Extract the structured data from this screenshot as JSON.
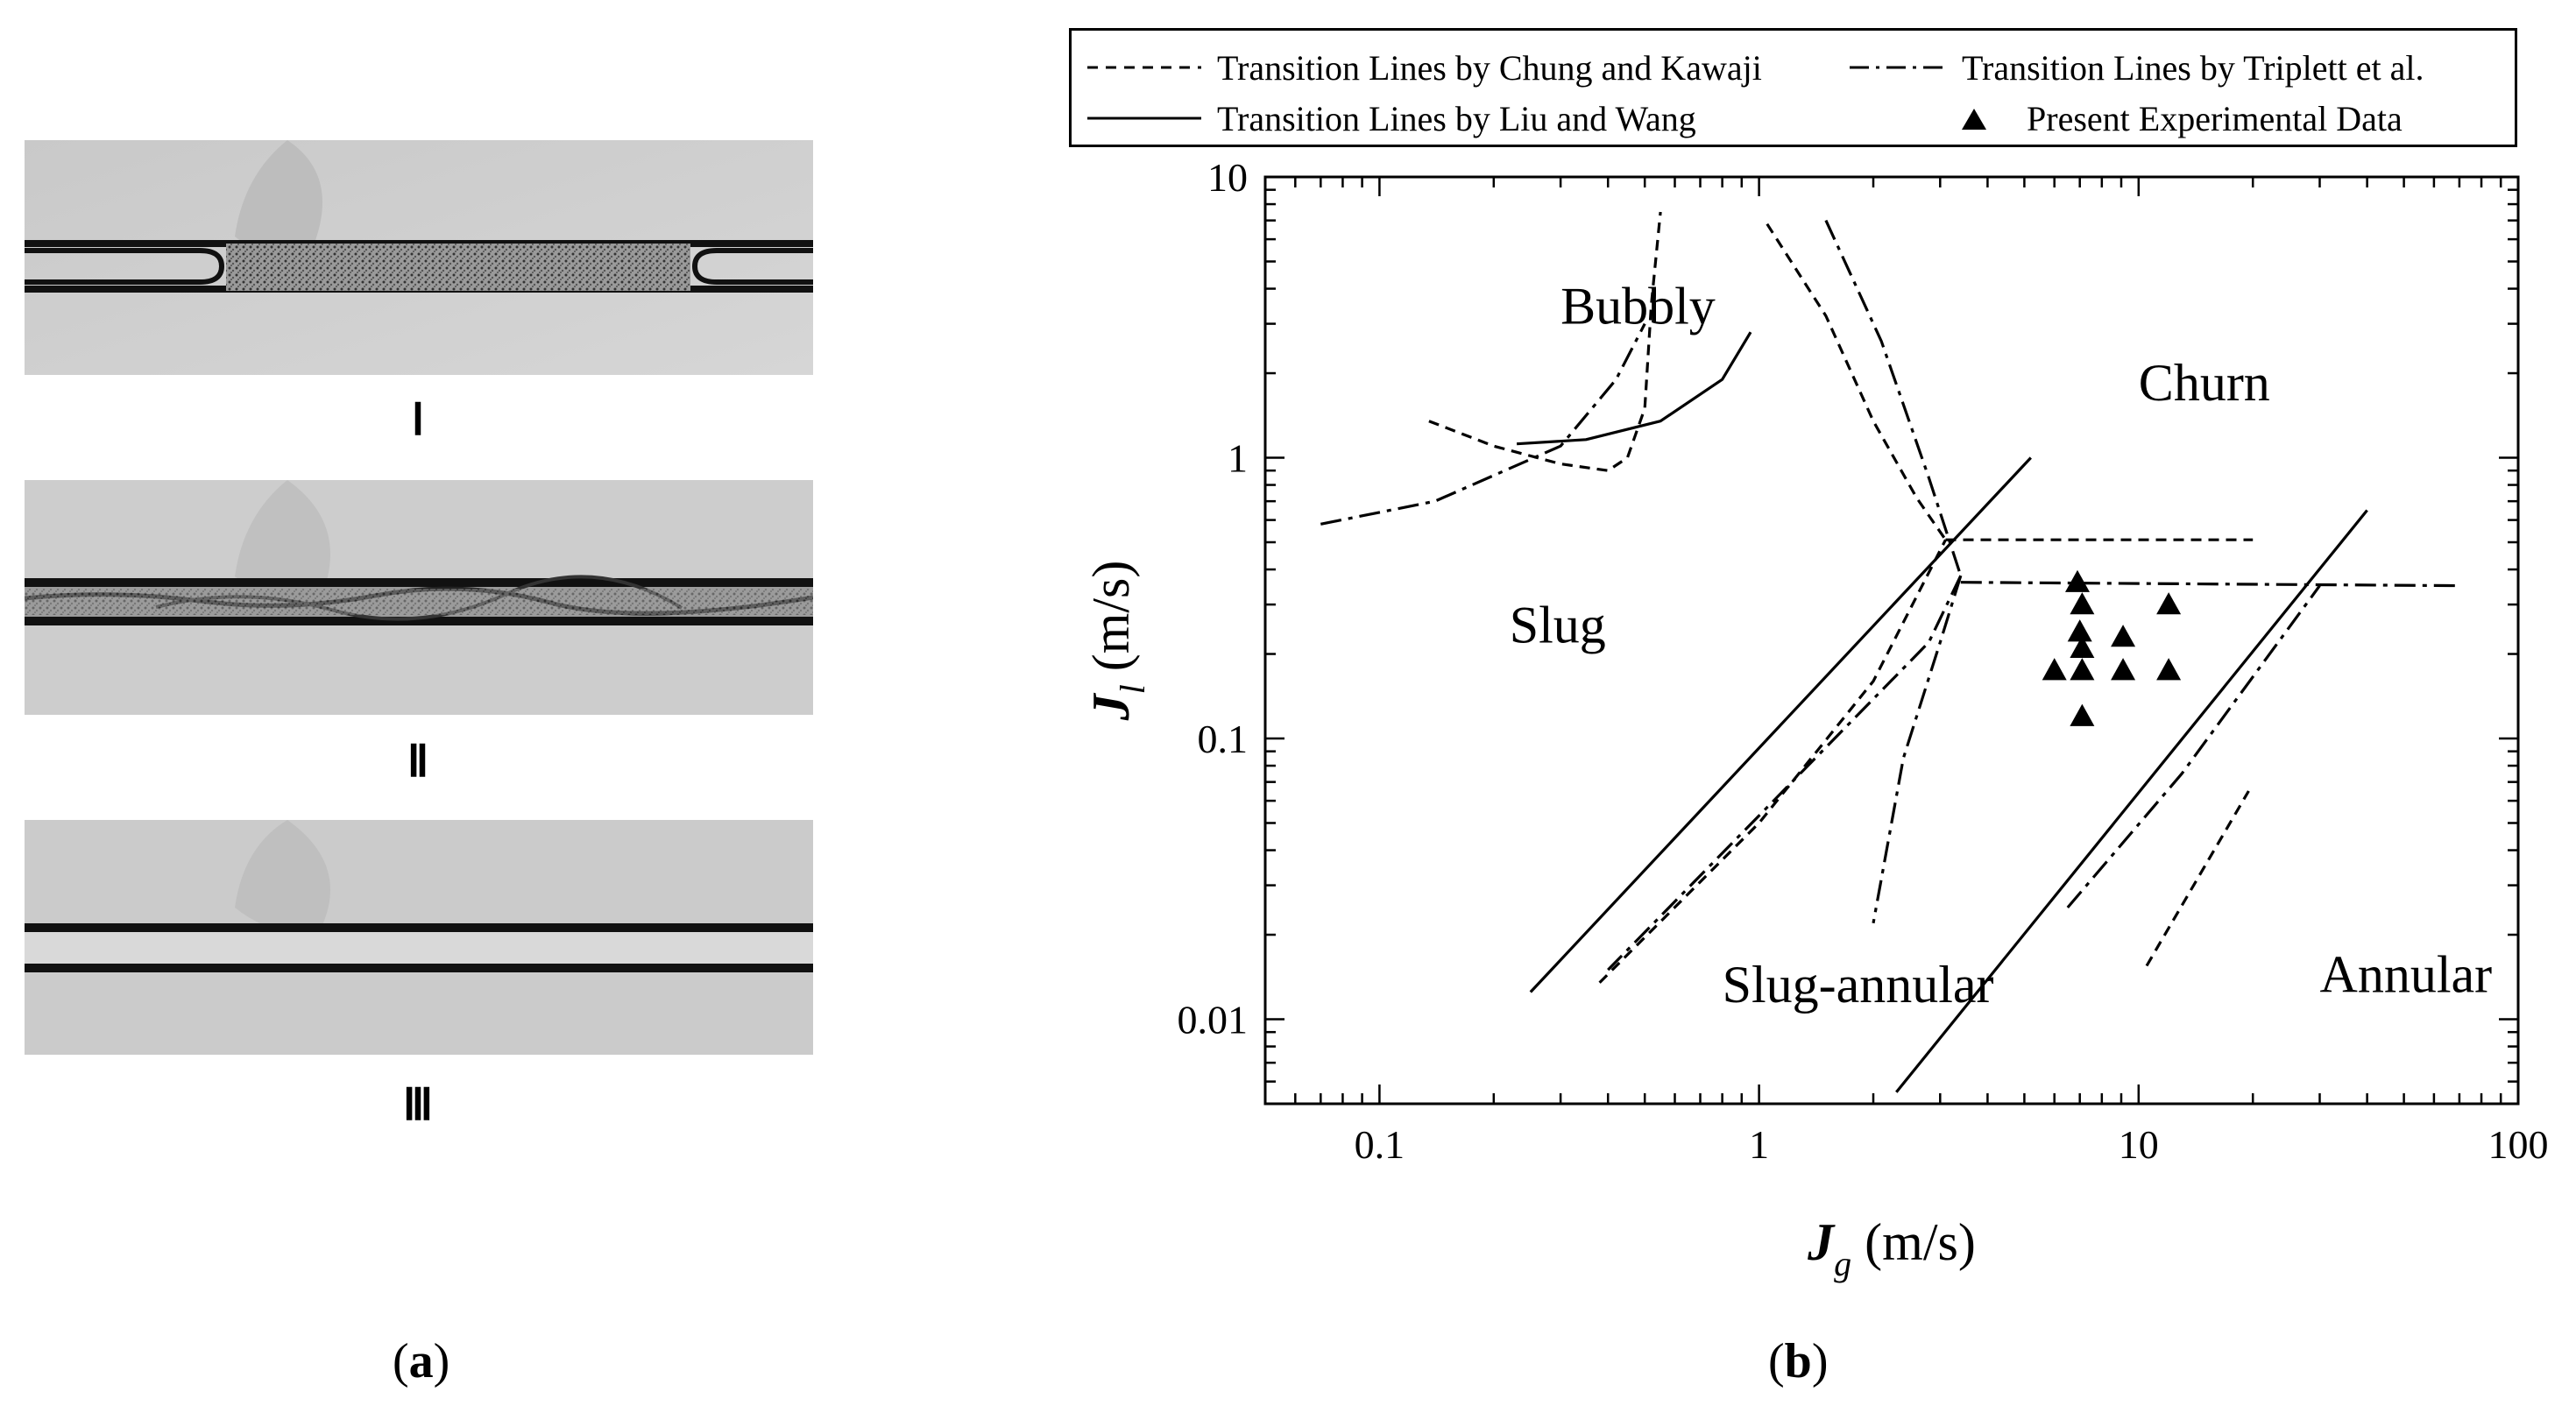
{
  "panel_a": {
    "images": [
      {
        "label": "Ⅰ",
        "pattern": "slug"
      },
      {
        "label": "Ⅱ",
        "pattern": "churn"
      },
      {
        "label": "Ⅲ",
        "pattern": "annular"
      }
    ],
    "caption": "a"
  },
  "panel_b_caption": "b",
  "chart_data": {
    "type": "scatter",
    "x_axis": {
      "label_main": "J",
      "label_sub": "g",
      "label_unit": " (m/s)",
      "scale": "log",
      "lim": [
        0.05,
        100
      ],
      "ticks": [
        0.1,
        1,
        10,
        100
      ],
      "tick_labels": [
        "0.1",
        "1",
        "10",
        "100"
      ]
    },
    "y_axis": {
      "label_main": "J",
      "label_sub": "l",
      "label_unit": " (m/s)",
      "scale": "log",
      "lim": [
        0.005,
        10
      ],
      "ticks": [
        0.01,
        0.1,
        1,
        10
      ],
      "tick_labels": [
        "0.01",
        "0.1",
        "1",
        "10"
      ]
    },
    "legend": [
      {
        "label": "Transition Lines by Chung and Kawaji",
        "style": "dashed"
      },
      {
        "label": "Transition Lines  by Triplett et al.",
        "style": "dashdot"
      },
      {
        "label": "Transition Lines by Liu and Wang",
        "style": "solid"
      },
      {
        "label": "Present Experimental Data",
        "style": "triangle"
      }
    ],
    "regions": [
      {
        "label": "Bubbly",
        "x": 0.3,
        "y": 3.0
      },
      {
        "label": "Churn",
        "x": 10,
        "y": 1.6
      },
      {
        "label": "Slug",
        "x": 0.22,
        "y": 0.22
      },
      {
        "label": "Slug-annular",
        "x": 0.8,
        "y": 0.0115
      },
      {
        "label": "Annular",
        "x": 30,
        "y": 0.0125
      }
    ],
    "series": [
      {
        "name": "Present Experimental Data",
        "style": "triangle",
        "points": [
          [
            6.9,
            0.36
          ],
          [
            7.1,
            0.3
          ],
          [
            7.0,
            0.24
          ],
          [
            7.1,
            0.21
          ],
          [
            9.1,
            0.23
          ],
          [
            12,
            0.3
          ],
          [
            6.0,
            0.175
          ],
          [
            7.1,
            0.175
          ],
          [
            9.1,
            0.175
          ],
          [
            12,
            0.175
          ],
          [
            7.1,
            0.12
          ]
        ]
      },
      {
        "name": "Chung and Kawaji",
        "style": "dashed",
        "lines": [
          [
            [
              0.135,
              1.35
            ],
            [
              0.2,
              1.1
            ],
            [
              0.3,
              0.95
            ],
            [
              0.4,
              0.9
            ],
            [
              0.45,
              1.0
            ],
            [
              0.5,
              1.5
            ],
            [
              0.52,
              3.5
            ],
            [
              0.55,
              7.5
            ]
          ],
          [
            [
              1.05,
              6.8
            ],
            [
              1.5,
              3.2
            ],
            [
              2.0,
              1.35
            ],
            [
              2.6,
              0.72
            ],
            [
              3.1,
              0.51
            ]
          ],
          [
            [
              3.1,
              0.51
            ],
            [
              20,
              0.51
            ]
          ],
          [
            [
              0.38,
              0.0135
            ],
            [
              1.0,
              0.05
            ],
            [
              2.0,
              0.16
            ],
            [
              3.1,
              0.51
            ]
          ],
          [
            [
              10.5,
              0.0155
            ],
            [
              19.5,
              0.065
            ]
          ]
        ]
      },
      {
        "name": "Triplett et al.",
        "style": "dashdot",
        "lines": [
          [
            [
              0.07,
              0.58
            ],
            [
              0.14,
              0.7
            ],
            [
              0.3,
              1.1
            ],
            [
              0.42,
              1.9
            ],
            [
              0.5,
              3.0
            ]
          ],
          [
            [
              1.5,
              7.0
            ],
            [
              2.1,
              2.6
            ],
            [
              2.8,
              0.85
            ],
            [
              3.4,
              0.38
            ]
          ],
          [
            [
              3.4,
              0.38
            ],
            [
              3.0,
              0.22
            ],
            [
              2.4,
              0.085
            ],
            [
              2.0,
              0.022
            ]
          ],
          [
            [
              3.4,
              0.36
            ],
            [
              70,
              0.35
            ]
          ],
          [
            [
              3.4,
              0.38
            ],
            [
              2.8,
              0.22
            ],
            [
              0.4,
              0.015
            ]
          ],
          [
            [
              6.5,
              0.025
            ],
            [
              13,
              0.075
            ],
            [
              30,
              0.35
            ]
          ]
        ]
      },
      {
        "name": "Liu and Wang",
        "style": "solid",
        "lines": [
          [
            [
              0.23,
              1.12
            ],
            [
              0.35,
              1.16
            ],
            [
              0.55,
              1.35
            ],
            [
              0.8,
              1.9
            ],
            [
              0.95,
              2.8
            ]
          ],
          [
            [
              0.25,
              0.0125
            ],
            [
              5.2,
              1.0
            ]
          ],
          [
            [
              2.3,
              0.0055
            ],
            [
              40,
              0.65
            ]
          ]
        ]
      }
    ]
  }
}
